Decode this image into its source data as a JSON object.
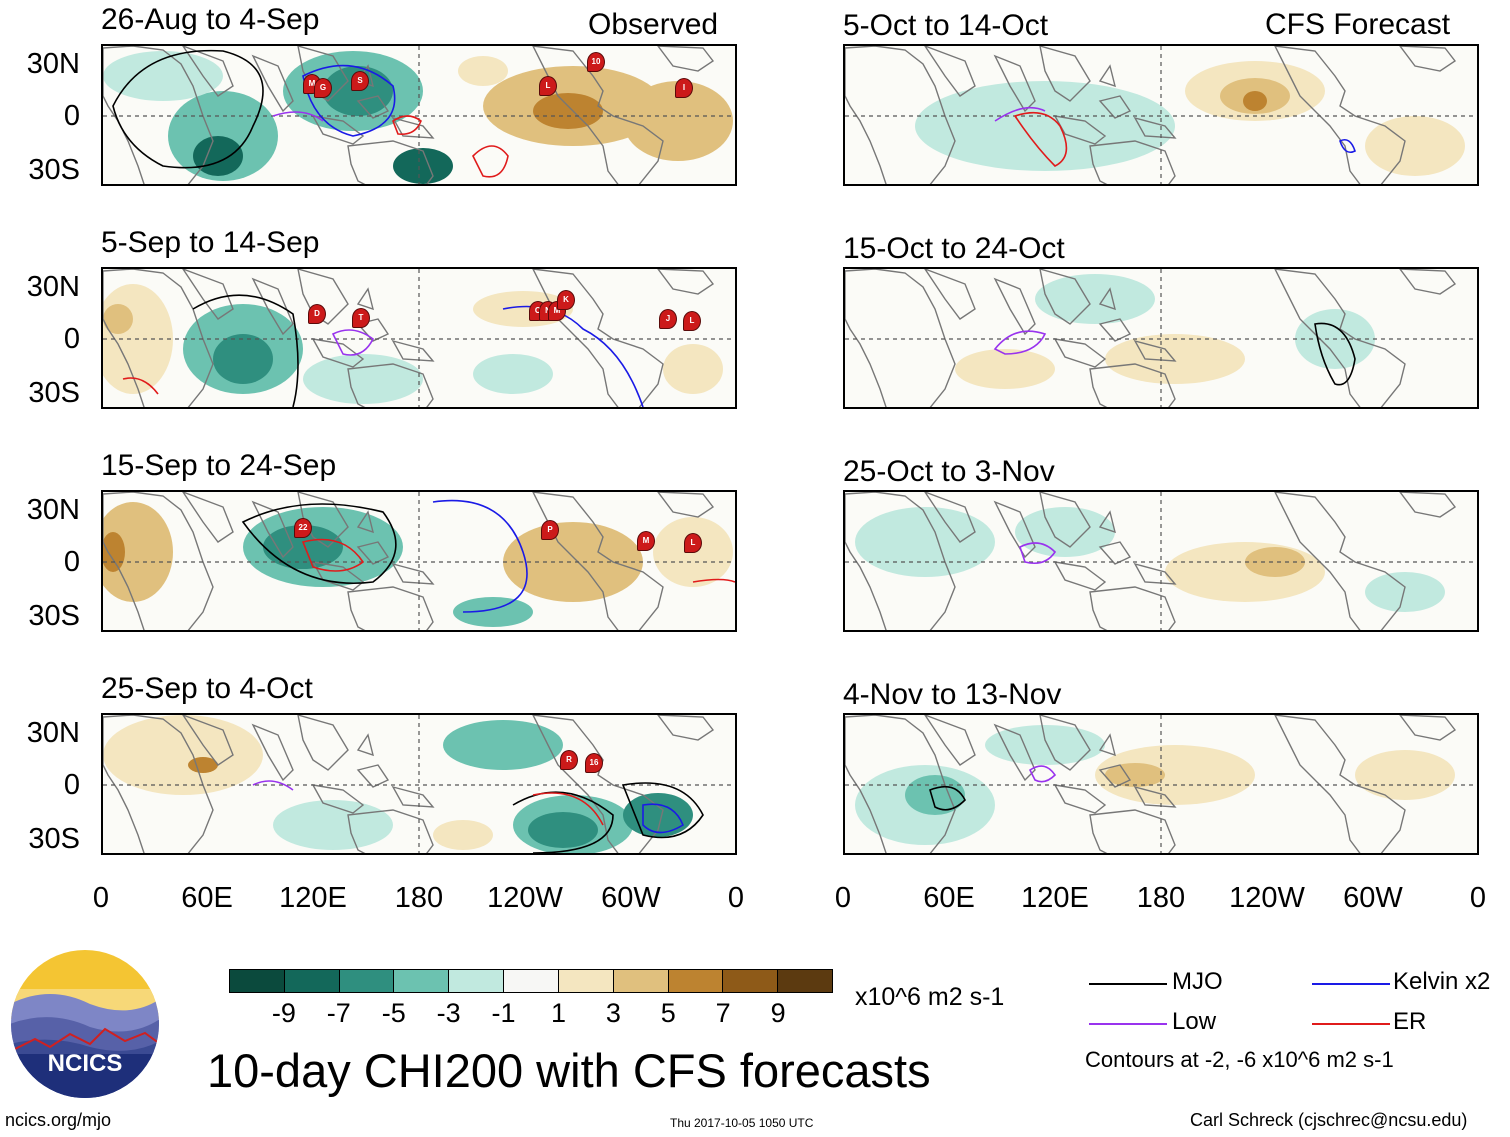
{
  "header": {
    "observed_label": "Observed",
    "forecast_label": "CFS Forecast"
  },
  "observed_panels": [
    {
      "title": "26-Aug to 4-Sep",
      "storm_markers": [
        "M",
        "G",
        "S",
        "10",
        "L",
        "I"
      ]
    },
    {
      "title": "5-Sep to 14-Sep",
      "storm_markers": [
        "D",
        "T",
        "O",
        "N",
        "M",
        "K",
        "J",
        "L"
      ]
    },
    {
      "title": "15-Sep to 24-Sep",
      "storm_markers": [
        "22",
        "P",
        "M",
        "L"
      ]
    },
    {
      "title": "25-Sep to 4-Oct",
      "storm_markers": [
        "R",
        "16"
      ]
    }
  ],
  "forecast_panels": [
    {
      "title": "5-Oct to 14-Oct"
    },
    {
      "title": "15-Oct to 24-Oct"
    },
    {
      "title": "25-Oct to 3-Nov"
    },
    {
      "title": "4-Nov to 13-Nov"
    }
  ],
  "axes": {
    "y_labels": [
      "30N",
      "0",
      "30S"
    ],
    "x_labels": [
      "0",
      "60E",
      "120E",
      "180",
      "120W",
      "60W",
      "0"
    ]
  },
  "colorbar": {
    "ticks": [
      "-9",
      "-7",
      "-5",
      "-3",
      "-1",
      "1",
      "3",
      "5",
      "7",
      "9"
    ],
    "colors": [
      "#0b4a3d",
      "#13685a",
      "#2f8f7f",
      "#6cc2b0",
      "#c1e9df",
      "#f7f7f5",
      "#f4e6c0",
      "#e0c07e",
      "#bd8330",
      "#8e5a18",
      "#5c3a10"
    ],
    "units": "x10^6 m2 s-1"
  },
  "title": "10-day CHI200 with CFS forecasts",
  "legend": [
    {
      "label": "MJO",
      "color": "#000000"
    },
    {
      "label": "Kelvin x2",
      "color": "#1a1ae6"
    },
    {
      "label": "Low",
      "color": "#9933ee"
    },
    {
      "label": "ER",
      "color": "#e01b1b"
    }
  ],
  "contours_note": "Contours at -2, -6 x10^6 m2 s-1",
  "footer": {
    "website": "ncics.org/mjo",
    "timestamp": "Thu 2017-10-05 1050 UTC",
    "author": "Carl Schreck (cjschrec@ncsu.edu)"
  },
  "logo": {
    "text": "NCICS"
  }
}
